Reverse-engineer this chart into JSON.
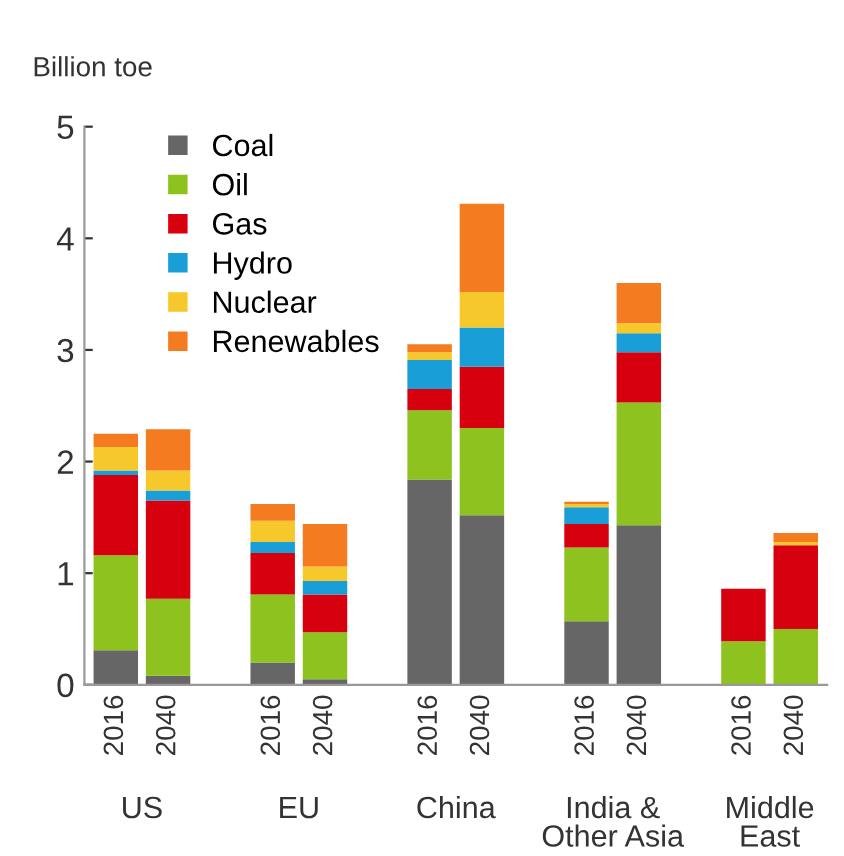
{
  "chart_data": {
    "type": "bar",
    "stacked": true,
    "ylabel": "Billion toe",
    "categories": [
      "2016",
      "2040",
      null,
      "2016",
      "2040",
      null,
      "2016",
      "2040",
      null,
      "2016",
      "2040",
      null,
      "2016",
      "2040"
    ],
    "series": [
      {
        "name": "Coal",
        "color": "#666666",
        "values": [
          0.31,
          0.08,
          null,
          0.2,
          0.05,
          null,
          1.84,
          1.52,
          null,
          0.57,
          1.43,
          null,
          0,
          0
        ]
      },
      {
        "name": "Oil",
        "color": "#8dc21f",
        "values": [
          0.85,
          0.69,
          null,
          0.61,
          0.42,
          null,
          0.62,
          0.78,
          null,
          0.66,
          1.1,
          null,
          0.39,
          0.5
        ]
      },
      {
        "name": "Gas",
        "color": "#d7000f",
        "values": [
          0.72,
          0.88,
          null,
          0.37,
          0.34,
          null,
          0.19,
          0.55,
          null,
          0.21,
          0.45,
          null,
          0.47,
          0.75
        ]
      },
      {
        "name": "Hydro",
        "color": "#1a9ed8",
        "values": [
          0.04,
          0.09,
          null,
          0.1,
          0.12,
          null,
          0.26,
          0.35,
          null,
          0.15,
          0.17,
          null,
          0,
          0
        ]
      },
      {
        "name": "Nuclear",
        "color": "#f7c82b",
        "values": [
          0.21,
          0.18,
          null,
          0.19,
          0.13,
          null,
          0.07,
          0.32,
          null,
          0.03,
          0.09,
          null,
          0,
          0.03
        ]
      },
      {
        "name": "Renewables",
        "color": "#f47b20",
        "values": [
          0.12,
          0.37,
          null,
          0.15,
          0.38,
          null,
          0.07,
          0.79,
          null,
          0.02,
          0.36,
          null,
          0,
          0.08
        ]
      }
    ],
    "ylim": [
      0,
      5
    ],
    "yticks": [
      0,
      1,
      2,
      3,
      4,
      5
    ],
    "grid": false,
    "legend": "top left",
    "annotations": [
      "US",
      "EU",
      "China",
      "India &\nOther Asia",
      "Middle\nEast"
    ]
  }
}
